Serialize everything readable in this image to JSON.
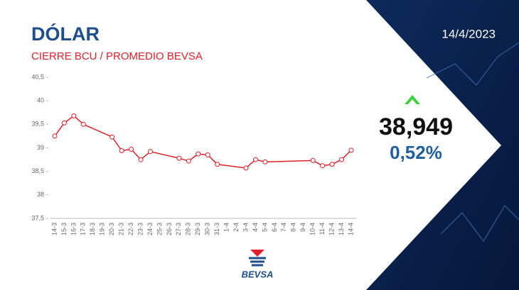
{
  "chart_data": {
    "type": "line",
    "title": "DÓLAR",
    "subtitle": "CIERRE BCU / PROMEDIO BEVSA",
    "date": "14/4/2023",
    "last_value_label": "38,949",
    "change_label": "0,52%",
    "logo": "BEVSA",
    "categories": [
      "14-3",
      "15-3",
      "16-3",
      "17-3",
      "18-3",
      "19-3",
      "20-3",
      "21-3",
      "22-3",
      "23-3",
      "24-3",
      "25-3",
      "26-3",
      "27-3",
      "28-3",
      "29-3",
      "30-3",
      "31-3",
      "1-4",
      "2-4",
      "3-4",
      "4-4",
      "5-4",
      "6-4",
      "7-4",
      "8-4",
      "9-4",
      "10-4",
      "11-4",
      "12-4",
      "13-4",
      "14-4"
    ],
    "values": [
      39.25,
      39.53,
      39.68,
      39.5,
      null,
      null,
      39.23,
      38.94,
      38.97,
      38.75,
      38.92,
      null,
      null,
      38.78,
      38.72,
      38.87,
      38.85,
      38.65,
      null,
      null,
      38.57,
      38.75,
      38.7,
      null,
      null,
      null,
      null,
      38.73,
      38.62,
      38.65,
      38.75,
      38.949
    ],
    "color": "#e0202a",
    "ylim": [
      37.5,
      40.5
    ],
    "yticks": [
      {
        "value": 37.5,
        "label": "37,5"
      },
      38,
      {
        "value": 38.5,
        "label": "38,5"
      },
      39,
      {
        "value": 39.5,
        "label": "39,5"
      },
      40,
      {
        "value": 40.5,
        "label": "40,5"
      }
    ]
  }
}
